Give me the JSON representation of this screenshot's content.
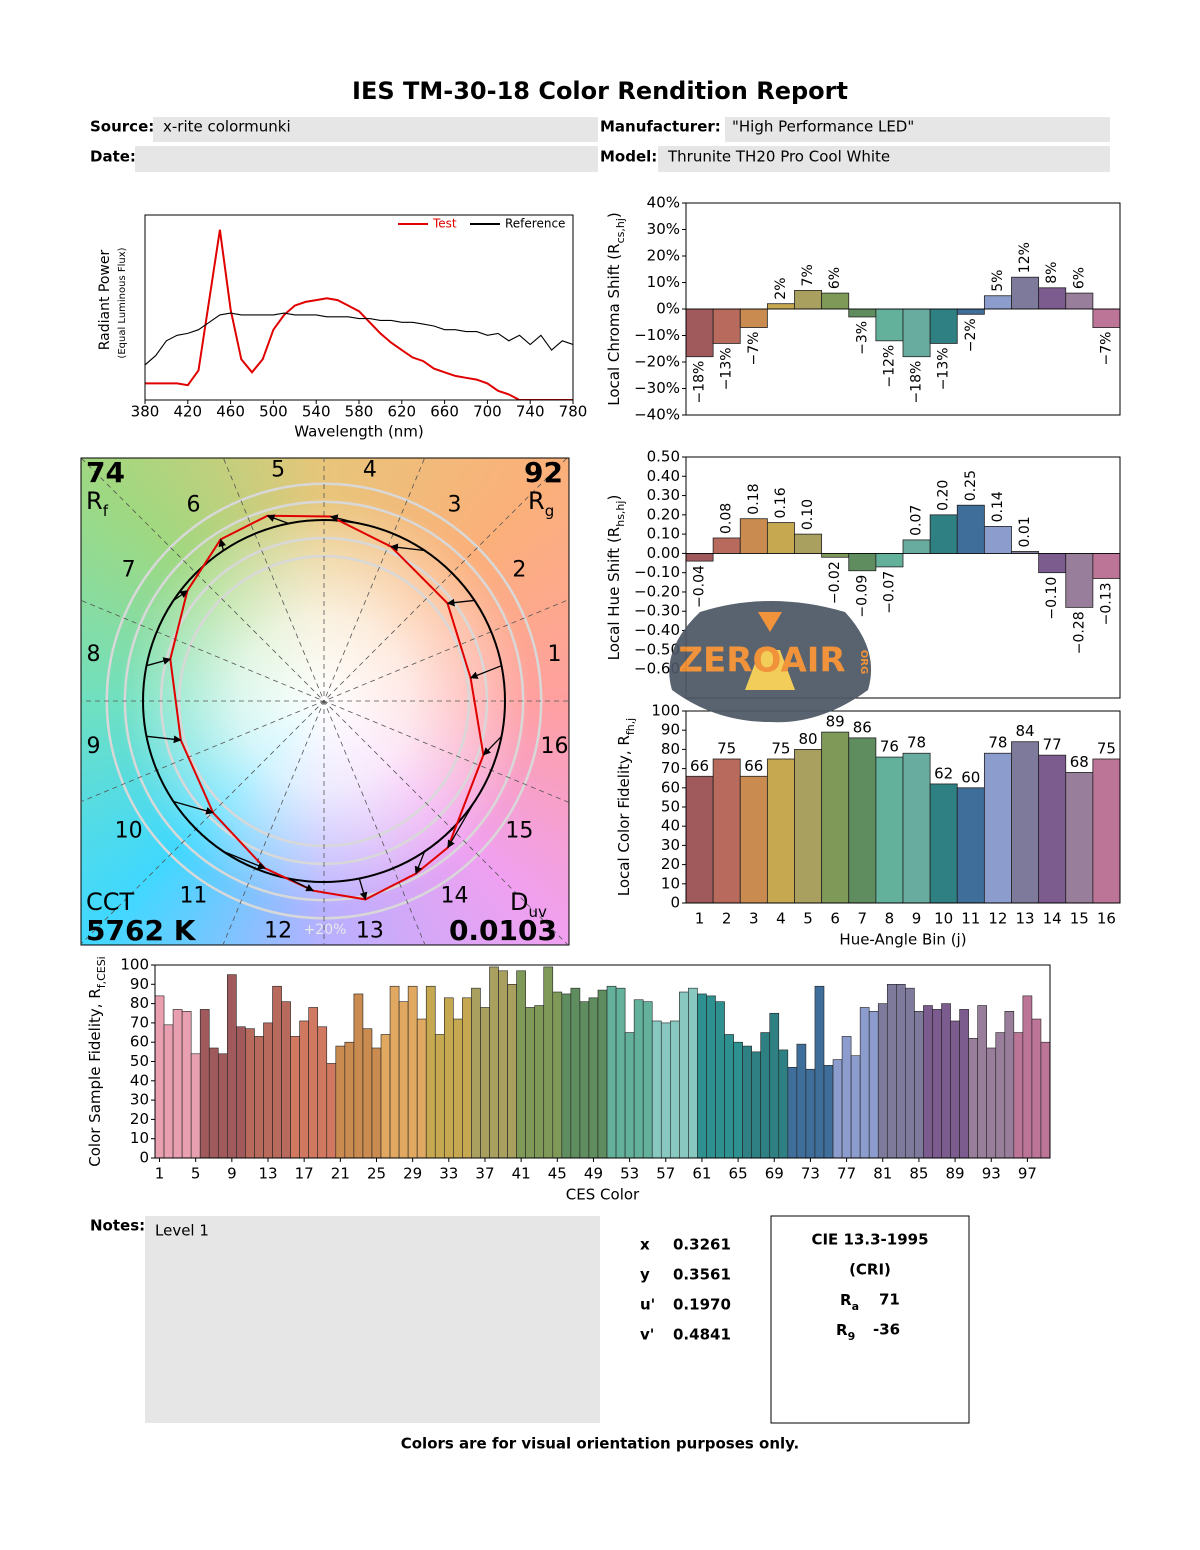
{
  "title": "IES TM-30-18 Color Rendition Report",
  "header": {
    "source": {
      "label": "Source:",
      "value": "x-rite colormunki"
    },
    "manufacturer": {
      "label": "Manufacturer:",
      "value": "\"High Performance LED\""
    },
    "date": {
      "label": "Date:"
    },
    "model": {
      "label": "Model:",
      "value": "Thrunite TH20 Pro Cool White"
    }
  },
  "vector_graphic": {
    "rf": {
      "value": 74,
      "symbol": "R",
      "sub": "f"
    },
    "rg": {
      "value": 92,
      "symbol": "R",
      "sub": "g"
    },
    "cct": {
      "label": "CCT",
      "value": 5762,
      "unit": "K"
    },
    "duv": {
      "symbol": "D",
      "sub": "uv",
      "value": 0.0103
    },
    "scale_label": "+20%"
  },
  "chart_data": [
    {
      "type": "line",
      "xlabel": "Wavelength (nm)",
      "ylabel": "Radiant Power",
      "ylabel2": "(Equal Luminous Flux)",
      "xlim": [
        380,
        780
      ],
      "ylim": [
        0,
        1
      ],
      "xticks": [
        380,
        420,
        460,
        500,
        540,
        580,
        620,
        660,
        700,
        740,
        780
      ],
      "x": [
        380,
        390,
        400,
        410,
        420,
        430,
        440,
        450,
        460,
        470,
        480,
        490,
        500,
        510,
        520,
        530,
        540,
        550,
        560,
        570,
        580,
        590,
        600,
        610,
        620,
        630,
        640,
        650,
        660,
        670,
        680,
        690,
        700,
        710,
        720,
        730,
        740,
        750,
        760,
        770,
        780
      ],
      "series": [
        {
          "name": "Test",
          "color": "#e00000",
          "values": [
            0.09,
            0.09,
            0.09,
            0.09,
            0.08,
            0.16,
            0.54,
            0.92,
            0.49,
            0.22,
            0.15,
            0.22,
            0.38,
            0.46,
            0.51,
            0.53,
            0.54,
            0.55,
            0.54,
            0.51,
            0.48,
            0.42,
            0.36,
            0.31,
            0.27,
            0.23,
            0.21,
            0.17,
            0.15,
            0.13,
            0.12,
            0.11,
            0.09,
            0.05,
            0.03,
            0,
            0,
            0,
            0,
            0,
            0
          ]
        },
        {
          "name": "Reference",
          "color": "#000000",
          "values": [
            0.19,
            0.24,
            0.32,
            0.35,
            0.36,
            0.38,
            0.42,
            0.46,
            0.47,
            0.46,
            0.46,
            0.46,
            0.46,
            0.47,
            0.46,
            0.46,
            0.46,
            0.45,
            0.45,
            0.45,
            0.44,
            0.44,
            0.43,
            0.43,
            0.42,
            0.42,
            0.41,
            0.4,
            0.38,
            0.38,
            0.37,
            0.37,
            0.35,
            0.36,
            0.32,
            0.35,
            0.3,
            0.35,
            0.27,
            0.32,
            0.3
          ]
        }
      ],
      "legend": "upper right"
    },
    {
      "type": "bar",
      "ylabel": {
        "text": "Local Chroma Shift (R",
        "sub": "cs,hj",
        "end": ")"
      },
      "ylim": [
        -40,
        40
      ],
      "yticks": [
        {
          "value": 40,
          "label": "40%"
        },
        {
          "value": 30,
          "label": "30%"
        },
        {
          "value": 20,
          "label": "20%"
        },
        {
          "value": 10,
          "label": "10%"
        },
        {
          "value": 0,
          "label": "0%"
        },
        {
          "value": -10,
          "label": "−10%"
        },
        {
          "value": -20,
          "label": "−20%"
        },
        {
          "value": -30,
          "label": "−30%"
        },
        {
          "value": -40,
          "label": "−40%"
        }
      ],
      "values": [
        -18,
        -13,
        -7,
        2,
        7,
        6,
        -3,
        -12,
        -18,
        -13,
        -2,
        5,
        12,
        8,
        6,
        -7
      ],
      "value_labels": [
        "−18%",
        "−13%",
        "−7%",
        "2%",
        "7%",
        "6%",
        "−3%",
        "−12%",
        "−18%",
        "−13%",
        "−2%",
        "5%",
        "12%",
        "8%",
        "6%",
        "−7%"
      ],
      "colors": [
        "#a05a5c",
        "#b86a5c",
        "#c98b4f",
        "#c5a84f",
        "#a9a060",
        "#7f9a58",
        "#5f8d5f",
        "#63b09b",
        "#68ac9f",
        "#2f8083",
        "#3f6e9a",
        "#8c9ccc",
        "#7e7a9c",
        "#7c5b8f",
        "#987e9a",
        "#bd7597"
      ]
    },
    {
      "type": "bar",
      "ylabel": {
        "text": "Local Hue Shift (R",
        "sub": "hs,hj",
        "end": ")"
      },
      "ylim": [
        -0.75,
        0.5
      ],
      "yticks": [
        {
          "value": 0.5,
          "label": "0.50"
        },
        {
          "value": 0.4,
          "label": "0.40"
        },
        {
          "value": 0.3,
          "label": "0.30"
        },
        {
          "value": 0.2,
          "label": "0.20"
        },
        {
          "value": 0.1,
          "label": "0.10"
        },
        {
          "value": 0,
          "label": "0.00"
        },
        {
          "value": -0.1,
          "label": "−0.10"
        },
        {
          "value": -0.2,
          "label": "−0.20"
        },
        {
          "value": -0.3,
          "label": "−0.30"
        },
        {
          "value": -0.4,
          "label": "−0.40"
        },
        {
          "value": -0.5,
          "label": "−0.50"
        },
        {
          "value": -0.6,
          "label": "−0.60"
        }
      ],
      "values": [
        -0.04,
        0.08,
        0.18,
        0.16,
        0.1,
        -0.02,
        -0.09,
        -0.07,
        0.07,
        0.2,
        0.25,
        0.14,
        0.01,
        -0.1,
        -0.28,
        -0.13
      ],
      "value_labels": [
        "−0.04",
        "0.08",
        "0.18",
        "0.16",
        "0.10",
        "−0.02",
        "−0.09",
        "−0.07",
        "0.07",
        "0.20",
        "0.25",
        "0.14",
        "0.01",
        "−0.10",
        "−0.28",
        "−0.13"
      ],
      "colors": [
        "#a05a5c",
        "#b86a5c",
        "#c98b4f",
        "#c5a84f",
        "#a9a060",
        "#7f9a58",
        "#5f8d5f",
        "#63b09b",
        "#68ac9f",
        "#2f8083",
        "#3f6e9a",
        "#8c9ccc",
        "#7e7a9c",
        "#7c5b8f",
        "#987e9a",
        "#bd7597"
      ]
    },
    {
      "type": "bar",
      "ylabel": {
        "text": "Local Color Fidelity, R",
        "sub": "fh,j"
      },
      "xlabel": "Hue-Angle Bin (j)",
      "ylim": [
        0,
        100
      ],
      "yticks": [
        0,
        10,
        20,
        30,
        40,
        50,
        60,
        70,
        80,
        90,
        100
      ],
      "categories": [
        "1",
        "2",
        "3",
        "4",
        "5",
        "6",
        "7",
        "8",
        "9",
        "10",
        "11",
        "12",
        "13",
        "14",
        "15",
        "16"
      ],
      "values": [
        66,
        75,
        66,
        75,
        80,
        89,
        86,
        76,
        78,
        62,
        60,
        78,
        84,
        77,
        68,
        75
      ],
      "colors": [
        "#a05a5c",
        "#b86a5c",
        "#c98b4f",
        "#c5a84f",
        "#a9a060",
        "#7f9a58",
        "#5f8d5f",
        "#63b09b",
        "#68ac9f",
        "#2f8083",
        "#3f6e9a",
        "#8c9ccc",
        "#7e7a9c",
        "#7c5b8f",
        "#987e9a",
        "#bd7597"
      ]
    },
    {
      "type": "bar",
      "ylabel": {
        "text": "Color Sample Fidelity, R",
        "sub": "f,CESi"
      },
      "xlabel": "CES Color",
      "ylim": [
        0,
        100
      ],
      "yticks": [
        0,
        10,
        20,
        30,
        40,
        50,
        60,
        70,
        80,
        90,
        100
      ],
      "xlim": [
        0.5,
        99.5
      ],
      "xticks": [
        1,
        5,
        9,
        13,
        17,
        21,
        25,
        29,
        33,
        37,
        41,
        45,
        49,
        53,
        57,
        61,
        65,
        69,
        73,
        77,
        81,
        85,
        89,
        93,
        97
      ],
      "x": [
        1,
        2,
        3,
        4,
        5,
        6,
        7,
        8,
        9,
        10,
        11,
        12,
        13,
        14,
        15,
        16,
        17,
        18,
        19,
        20,
        21,
        22,
        23,
        24,
        25,
        26,
        27,
        28,
        29,
        30,
        31,
        32,
        33,
        34,
        35,
        36,
        37,
        38,
        39,
        40,
        41,
        42,
        43,
        44,
        45,
        46,
        47,
        48,
        49,
        50,
        51,
        52,
        53,
        54,
        55,
        56,
        57,
        58,
        59,
        60,
        61,
        62,
        63,
        64,
        65,
        66,
        67,
        68,
        69,
        70,
        71,
        72,
        73,
        74,
        75,
        76,
        77,
        78,
        79,
        80,
        81,
        82,
        83,
        84,
        85,
        86,
        87,
        88,
        89,
        90,
        91,
        92,
        93,
        94,
        95,
        96,
        97,
        98,
        99
      ],
      "values": [
        84,
        69,
        77,
        76,
        54,
        77,
        57,
        54,
        95,
        68,
        67,
        63,
        70,
        89,
        81,
        63,
        71,
        78,
        68,
        49,
        58,
        60,
        85,
        67,
        57,
        64,
        89,
        81,
        89,
        72,
        89,
        64,
        83,
        72,
        83,
        88,
        78,
        99,
        97,
        90,
        97,
        78,
        79,
        99,
        86,
        85,
        88,
        81,
        83,
        87,
        89,
        88,
        65,
        82,
        81,
        71,
        70,
        71,
        86,
        88,
        85,
        84,
        81,
        64,
        60,
        58,
        55,
        65,
        75,
        56,
        47,
        59,
        46,
        89,
        48,
        51,
        63,
        53,
        78,
        76,
        80,
        90,
        90,
        88,
        76,
        79,
        77,
        80,
        71,
        77,
        62,
        79,
        57,
        65,
        76,
        65,
        84,
        72,
        60
      ],
      "colors": [
        "#e8a0b0",
        "#a05a5c",
        "#b86a5c",
        "#d07860",
        "#c98b4f",
        "#e0a860",
        "#c5a84f",
        "#a9a060",
        "#7f9a58",
        "#5f8d5f",
        "#63b09b",
        "#88c8c0",
        "#2f9090",
        "#2f8083",
        "#3f6e9a",
        "#8c9ccc",
        "#7e7a9c",
        "#7c5b8f",
        "#987e9a",
        "#bd7597"
      ]
    }
  ],
  "notes": {
    "label": "Notes:",
    "text": "Level 1"
  },
  "colorimetry": [
    {
      "label": "x",
      "value": "0.3261"
    },
    {
      "label": "y",
      "value": "0.3561"
    },
    {
      "label": "u'",
      "value": "0.1970"
    },
    {
      "label": "v'",
      "value": "0.4841"
    }
  ],
  "cri": {
    "title": "CIE 13.3-1995",
    "subtitle": "(CRI)",
    "ra": {
      "symbol": "R",
      "sub": "a",
      "value": 71
    },
    "r9": {
      "symbol": "R",
      "sub": "9",
      "value": -36
    }
  },
  "footer": "Colors are for visual orientation purposes only.",
  "watermark": {
    "text": "ZEROAIR",
    "suffix": "ORG"
  }
}
